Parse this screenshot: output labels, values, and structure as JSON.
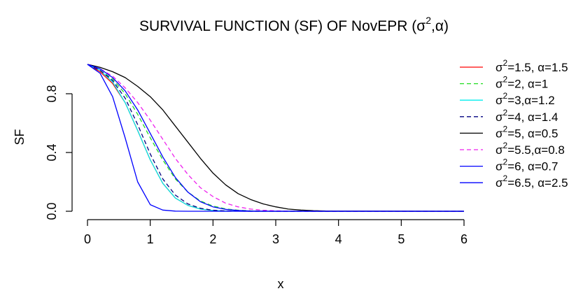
{
  "chart_data": {
    "type": "line",
    "title": {
      "prefix": "SURVIVAL FUNCTION (SF) OF NovEPR  (σ",
      "sup": "2",
      "suffix": ",α)"
    },
    "xlabel": "x",
    "ylabel": "SF",
    "xlim": [
      0,
      6
    ],
    "ylim": [
      0,
      1
    ],
    "x_ticks": [
      0,
      1,
      2,
      3,
      4,
      5,
      6
    ],
    "x_tick_labels": [
      "0",
      "1",
      "2",
      "3",
      "4",
      "5",
      "6"
    ],
    "y_ticks": [
      0,
      0.4,
      0.8
    ],
    "y_tick_labels": [
      "0.0",
      "0.4",
      "0.8"
    ],
    "grid": false,
    "legend_position": "right",
    "x": [
      0,
      0.2,
      0.4,
      0.6,
      0.8,
      1.0,
      1.2,
      1.4,
      1.6,
      1.8,
      2.0,
      2.2,
      2.4,
      2.6,
      2.8,
      3.0,
      3.2,
      3.4,
      3.6,
      3.8,
      4.0,
      6.0
    ],
    "series": [
      {
        "legend_pre": "σ",
        "legend_sup": "2",
        "legend_post": "=1.5, α=1.5",
        "color": "#ff0000",
        "dash": "solid",
        "values": [
          1,
          0.95,
          0.87,
          0.74,
          0.55,
          0.35,
          0.19,
          0.09,
          0.04,
          0.015,
          0.005,
          0.002,
          0.001,
          0,
          0,
          0,
          0,
          0,
          0,
          0,
          0,
          0
        ]
      },
      {
        "legend_pre": "σ",
        "legend_sup": "2",
        "legend_post": "=2, α=1",
        "color": "#22dd22",
        "dash": "dashed",
        "values": [
          1,
          0.96,
          0.9,
          0.8,
          0.66,
          0.5,
          0.35,
          0.22,
          0.13,
          0.07,
          0.035,
          0.016,
          0.007,
          0.003,
          0.001,
          0,
          0,
          0,
          0,
          0,
          0,
          0
        ]
      },
      {
        "legend_pre": "σ",
        "legend_sup": "2",
        "legend_post": "=3,α=1.2",
        "color": "#00eeee",
        "dash": "solid",
        "values": [
          1,
          0.96,
          0.88,
          0.74,
          0.55,
          0.35,
          0.19,
          0.09,
          0.04,
          0.015,
          0.005,
          0.002,
          0.001,
          0,
          0,
          0,
          0,
          0,
          0,
          0,
          0,
          0
        ]
      },
      {
        "legend_pre": "σ",
        "legend_sup": "2",
        "legend_post": "=4, α=1.4",
        "color": "#000080",
        "dash": "dashed",
        "values": [
          1,
          0.96,
          0.89,
          0.77,
          0.59,
          0.39,
          0.22,
          0.11,
          0.05,
          0.02,
          0.007,
          0.002,
          0.001,
          0,
          0,
          0,
          0,
          0,
          0,
          0,
          0,
          0
        ]
      },
      {
        "legend_pre": "σ",
        "legend_sup": "2",
        "legend_post": "=5, α=0.5",
        "color": "#000000",
        "dash": "solid",
        "values": [
          1,
          0.98,
          0.95,
          0.91,
          0.85,
          0.78,
          0.69,
          0.58,
          0.47,
          0.36,
          0.26,
          0.18,
          0.12,
          0.08,
          0.05,
          0.03,
          0.015,
          0.008,
          0.004,
          0.002,
          0.001,
          0
        ]
      },
      {
        "legend_pre": "σ",
        "legend_sup": "2",
        "legend_post": "=5.5,α=0.8",
        "color": "#ee22ee",
        "dash": "dashed",
        "values": [
          1,
          0.97,
          0.92,
          0.84,
          0.74,
          0.62,
          0.49,
          0.36,
          0.25,
          0.16,
          0.1,
          0.055,
          0.03,
          0.015,
          0.007,
          0.003,
          0.001,
          0,
          0,
          0,
          0,
          0
        ]
      },
      {
        "legend_pre": "σ",
        "legend_sup": "2",
        "legend_post": "=6, α=0.7",
        "color": "#0000ff",
        "dash": "solid",
        "values": [
          1,
          0.97,
          0.91,
          0.82,
          0.69,
          0.53,
          0.37,
          0.23,
          0.13,
          0.065,
          0.03,
          0.013,
          0.005,
          0.002,
          0.001,
          0,
          0,
          0,
          0,
          0,
          0,
          0
        ]
      },
      {
        "legend_pre": "σ",
        "legend_sup": "2",
        "legend_post": "=6.5, α=2.5",
        "color": "#0000ff",
        "dash": "solid",
        "values": [
          1,
          0.94,
          0.78,
          0.5,
          0.2,
          0.045,
          0.008,
          0.001,
          0,
          0,
          0,
          0,
          0,
          0,
          0,
          0,
          0,
          0,
          0,
          0,
          0,
          0
        ]
      }
    ]
  }
}
